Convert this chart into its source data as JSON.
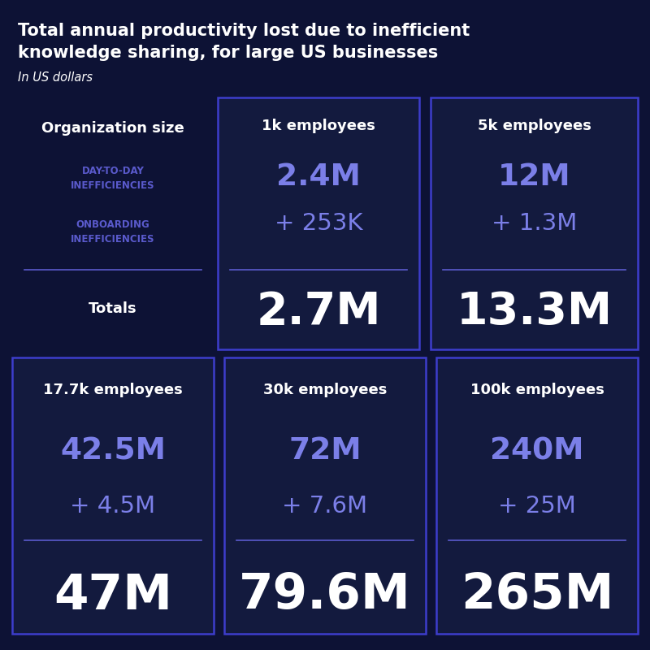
{
  "title_line1": "Total annual productivity lost due to inefficient",
  "title_line2": "knowledge sharing, for large US businesses",
  "subtitle": "In US dollars",
  "bg_color": "#0d1235",
  "card_bg_color": "#131a3e",
  "border_color": "#3d3dcc",
  "text_white": "#ffffff",
  "text_purple": "#7b7fe8",
  "text_label_purple": "#5a5acc",
  "top_cards": [
    {
      "header": "1k employees",
      "day_to_day": "2.4M",
      "onboarding": "+ 253K",
      "total": "2.7M"
    },
    {
      "header": "5k employees",
      "day_to_day": "12M",
      "onboarding": "+ 1.3M",
      "total": "13.3M"
    }
  ],
  "bottom_cards": [
    {
      "header": "17.7k employees",
      "day_to_day": "42.5M",
      "onboarding": "+ 4.5M",
      "total": "47M"
    },
    {
      "header": "30k employees",
      "day_to_day": "72M",
      "onboarding": "+ 7.6M",
      "total": "79.6M"
    },
    {
      "header": "100k employees",
      "day_to_day": "240M",
      "onboarding": "+ 25M",
      "total": "265M"
    }
  ]
}
